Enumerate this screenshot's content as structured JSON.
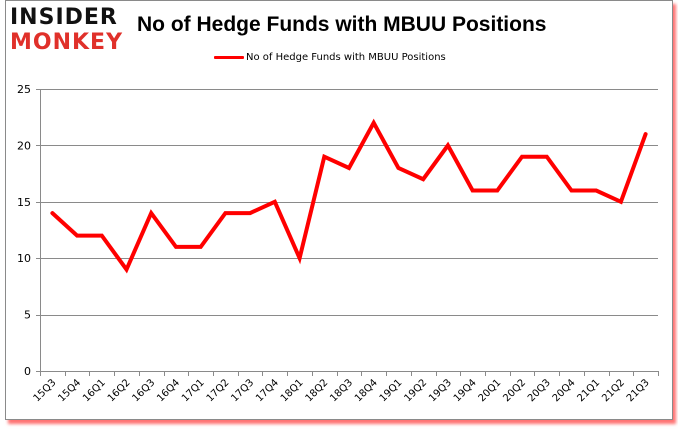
{
  "logo": {
    "line1": "INSIDER",
    "line2": "MONKEY"
  },
  "colors": {
    "series": "#ff0000",
    "grid": "#8a8a8a",
    "shadow": "#ff0000",
    "logo_red": "#e0302a"
  },
  "chart_data": {
    "type": "line",
    "title": "No of Hedge Funds with MBUU Positions",
    "xlabel": "",
    "ylabel": "",
    "ylim": [
      0,
      25
    ],
    "yticks": [
      0,
      5,
      10,
      15,
      20,
      25
    ],
    "grid": true,
    "legend_position": "top",
    "categories": [
      "15Q3",
      "15Q4",
      "16Q1",
      "16Q2",
      "16Q3",
      "16Q4",
      "17Q1",
      "17Q2",
      "17Q3",
      "17Q4",
      "18Q1",
      "18Q2",
      "18Q3",
      "18Q4",
      "19Q1",
      "19Q2",
      "19Q3",
      "19Q4",
      "20Q1",
      "20Q2",
      "20Q3",
      "20Q4",
      "21Q1",
      "21Q2",
      "21Q3"
    ],
    "series": [
      {
        "name": "No of Hedge Funds with MBUU Positions",
        "values": [
          14,
          12,
          12,
          9,
          14,
          11,
          11,
          14,
          14,
          15,
          10,
          19,
          18,
          22,
          18,
          17,
          20,
          16,
          16,
          19,
          19,
          16,
          16,
          15,
          21
        ]
      }
    ]
  }
}
